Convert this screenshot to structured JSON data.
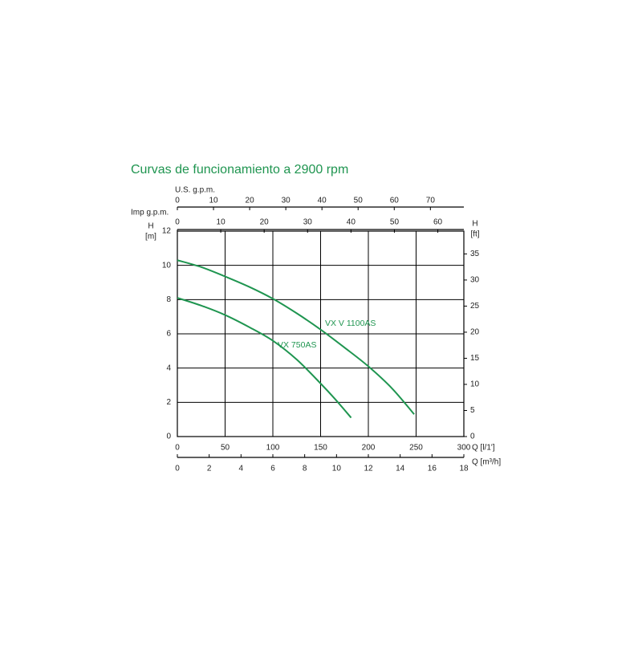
{
  "chart_data": {
    "type": "line",
    "title": "Curvas de funcionamiento a 2900 rpm",
    "x_label": "Q [l/1']",
    "y_label": [
      "H",
      "[m]"
    ],
    "y2_label": [
      "H",
      "[ft]"
    ],
    "xlim": [
      0,
      300
    ],
    "xticks": [
      0,
      50,
      100,
      150,
      200,
      250,
      300
    ],
    "ylim": [
      0,
      12
    ],
    "yticks": [
      0,
      2,
      4,
      6,
      8,
      10,
      12
    ],
    "y2lim": [
      0,
      39.37
    ],
    "y2ticks": [
      0,
      5,
      10,
      15,
      20,
      25,
      30,
      35
    ],
    "grid": true,
    "secondary_x_axes": [
      {
        "label": "Q [m³/h]",
        "position": "bottom",
        "lim": [
          0,
          18
        ],
        "ticks": [
          0,
          2,
          4,
          6,
          8,
          10,
          12,
          14,
          16,
          18
        ]
      },
      {
        "label": "Imp g.p.m.",
        "position": "top",
        "lim": [
          0,
          66
        ],
        "ticks": [
          0,
          10,
          20,
          30,
          40,
          50,
          60
        ]
      },
      {
        "label": "U.S. g.p.m.",
        "position": "top",
        "lim": [
          0,
          79.25
        ],
        "ticks": [
          0,
          10,
          20,
          30,
          40,
          50,
          60,
          70
        ]
      }
    ],
    "series": [
      {
        "name": "VX V 1100AS",
        "color": "#1f9550",
        "x": [
          0,
          25,
          50,
          75,
          100,
          125,
          150,
          175,
          200,
          225,
          248
        ],
        "values": [
          10.3,
          9.9,
          9.35,
          8.75,
          8.05,
          7.2,
          6.25,
          5.2,
          4.1,
          2.8,
          1.3
        ]
      },
      {
        "name": "VX 750AS",
        "color": "#1f9550",
        "x": [
          0,
          25,
          50,
          75,
          100,
          125,
          150,
          165,
          182
        ],
        "values": [
          8.1,
          7.65,
          7.1,
          6.4,
          5.6,
          4.5,
          3.1,
          2.2,
          1.1
        ]
      }
    ]
  }
}
